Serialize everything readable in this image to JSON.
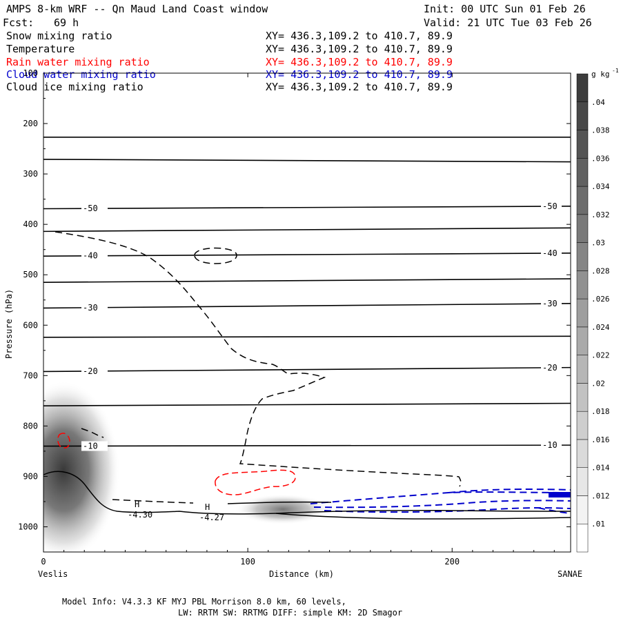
{
  "header": {
    "title": "AMPS 8-km WRF -- Qn Maud Land Coast window",
    "init": "Init: 00 UTC Sun 01 Feb 26",
    "fcst_label": "Fcst:",
    "fcst_hours": "69 h",
    "valid": "Valid: 21 UTC Tue 03 Feb 26"
  },
  "legend": [
    {
      "name": "Snow mixing ratio",
      "xy": "XY= 436.3,109.2 to 410.7, 89.9",
      "color": "#000000"
    },
    {
      "name": "Temperature",
      "xy": "XY= 436.3,109.2 to 410.7, 89.9",
      "color": "#000000"
    },
    {
      "name": "Rain water mixing ratio",
      "xy": "XY= 436.3,109.2 to 410.7, 89.9",
      "color": "#ff0000"
    },
    {
      "name": "Cloud water mixing ratio",
      "xy": "XY= 436.3,109.2 to 410.7, 89.9",
      "color": "#0000cc"
    },
    {
      "name": "Cloud ice mixing ratio",
      "xy": "XY= 436.3,109.2 to 410.7, 89.9",
      "color": "#000000"
    }
  ],
  "footer": {
    "line1": "Model Info: V4.3.3   KF      MYJ PBL  Morrison              8.0 km,  60 levels,",
    "line2": "LW: RRTM SW: RRTMG   DIFF: simple KM: 2D Smagor"
  },
  "chart_data": {
    "type": "cross-section",
    "ylabel": "Pressure (hPa)",
    "xlabel": "Distance (km)",
    "x_left_label": "Veslis",
    "x_right_label": "SANAE",
    "xlim": [
      0,
      258
    ],
    "ylim": [
      1050,
      100
    ],
    "x_ticks": [
      0,
      100,
      200
    ],
    "y_ticks": [
      100,
      200,
      300,
      400,
      500,
      600,
      700,
      800,
      900,
      1000
    ],
    "colorbar": {
      "unit": "g kg",
      "unit_exp": "-1",
      "levels": [
        0.01,
        0.012,
        0.014,
        0.016,
        0.018,
        0.02,
        0.022,
        0.024,
        0.026,
        0.028,
        0.03,
        0.032,
        0.034,
        0.036,
        0.038,
        0.04
      ],
      "labels": [
        ".01",
        ".012",
        ".014",
        ".016",
        ".018",
        ".02",
        ".022",
        ".024",
        ".026",
        ".028",
        ".03",
        ".032",
        ".034",
        ".036",
        ".038",
        ".04"
      ]
    },
    "isotherms": [
      {
        "p_left": 227,
        "p_right": 227
      },
      {
        "p_left": 271,
        "p_right": 276
      },
      {
        "p_left": 369,
        "p_right": 364,
        "label": "-50"
      },
      {
        "p_left": 414,
        "p_right": 407
      },
      {
        "p_left": 463,
        "p_right": 457,
        "label": "-40"
      },
      {
        "p_left": 515,
        "p_right": 508
      },
      {
        "p_left": 566,
        "p_right": 557,
        "label": "-30"
      },
      {
        "p_left": 624,
        "p_right": 622
      },
      {
        "p_left": 692,
        "p_right": 684,
        "label": "-20"
      },
      {
        "p_left": 760,
        "p_right": 755
      },
      {
        "p_left": 840,
        "p_right": 838,
        "label": "-10"
      }
    ],
    "highs": [
      {
        "label": "H",
        "value": "-4.30",
        "x": 46,
        "p": 950
      },
      {
        "label": "H",
        "value": "-4.27",
        "x": 81,
        "p": 955
      }
    ]
  }
}
